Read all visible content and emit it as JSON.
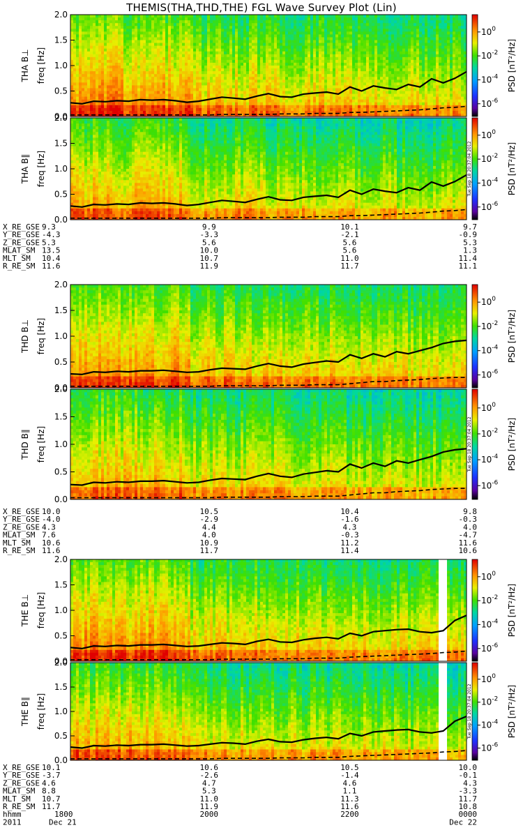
{
  "title": "THEMIS(THA,THD,THE) FGL Wave Survey Plot (Lin)",
  "colorbar": {
    "label": "PSD [nT²/Hz]",
    "ticks": [
      {
        "base": "10",
        "exp": "0"
      },
      {
        "base": "10",
        "exp": "-2"
      },
      {
        "base": "10",
        "exp": "-4"
      },
      {
        "base": "10",
        "exp": "-6"
      }
    ]
  },
  "stamp": "Tue Sep 18 20:37:04 2012",
  "chart_data": [
    {
      "probe": "THA",
      "type": "heatmap",
      "panels": [
        {
          "name": "THA B⊥",
          "ylabel": "freq [Hz]",
          "ylim": [
            0,
            2.0
          ],
          "yticks": [
            "2.0",
            "1.5",
            "1.0",
            "0.5",
            "0.0"
          ]
        },
        {
          "name": "THA B∥",
          "ylabel": "freq [Hz]",
          "ylim": [
            0,
            2.0
          ],
          "yticks": [
            "2.0",
            "1.5",
            "1.0",
            "0.5",
            "0.0"
          ]
        }
      ],
      "gaps": [],
      "fc_line": [
        0.27,
        0.25,
        0.3,
        0.29,
        0.31,
        0.3,
        0.33,
        0.32,
        0.33,
        0.31,
        0.28,
        0.3,
        0.34,
        0.38,
        0.36,
        0.34,
        0.4,
        0.45,
        0.39,
        0.38,
        0.44,
        0.46,
        0.48,
        0.44,
        0.58,
        0.5,
        0.6,
        0.56,
        0.53,
        0.63,
        0.58,
        0.74,
        0.66,
        0.75,
        0.88
      ],
      "fc_line_dashed": [
        0.03,
        0.03,
        0.03,
        0.03,
        0.03,
        0.03,
        0.03,
        0.03,
        0.03,
        0.03,
        0.03,
        0.03,
        0.03,
        0.04,
        0.04,
        0.04,
        0.04,
        0.04,
        0.05,
        0.05,
        0.05,
        0.06,
        0.06,
        0.06,
        0.08,
        0.08,
        0.09,
        0.1,
        0.11,
        0.12,
        0.13,
        0.15,
        0.17,
        0.18,
        0.2
      ],
      "orbit_labels": [
        "X_RE_GSE",
        "Y_RE_GSE",
        "Z_RE_GSE",
        "MLAT_SM",
        "MLT_SM",
        "R_RE_SM"
      ],
      "orbit_rows": [
        [
          "9.3",
          "9.9",
          "10.1",
          "9.7"
        ],
        [
          "-4.3",
          "-3.3",
          "-2.1",
          "-0.9"
        ],
        [
          "5.3",
          "5.6",
          "5.6",
          "5.3"
        ],
        [
          "13.5",
          "10.0",
          "5.6",
          "1.3"
        ],
        [
          "10.4",
          "10.7",
          "11.0",
          "11.4"
        ],
        [
          "11.6",
          "11.9",
          "11.7",
          "11.1"
        ]
      ]
    },
    {
      "probe": "THD",
      "type": "heatmap",
      "panels": [
        {
          "name": "THD B⊥",
          "ylabel": "freq [Hz]",
          "ylim": [
            0,
            2.0
          ],
          "yticks": [
            "2.0",
            "1.5",
            "1.0",
            "0.5",
            "0.0"
          ]
        },
        {
          "name": "THD B∥",
          "ylabel": "freq [Hz]",
          "ylim": [
            0,
            2.0
          ],
          "yticks": [
            "2.0",
            "1.5",
            "1.0",
            "0.5",
            "0.0"
          ]
        }
      ],
      "gaps": [],
      "fc_line": [
        0.27,
        0.26,
        0.31,
        0.3,
        0.32,
        0.31,
        0.33,
        0.33,
        0.34,
        0.32,
        0.3,
        0.31,
        0.35,
        0.38,
        0.37,
        0.36,
        0.42,
        0.47,
        0.42,
        0.4,
        0.46,
        0.49,
        0.52,
        0.5,
        0.64,
        0.57,
        0.66,
        0.6,
        0.7,
        0.66,
        0.72,
        0.78,
        0.86,
        0.9,
        0.92
      ],
      "fc_line_dashed": [
        0.03,
        0.03,
        0.03,
        0.03,
        0.03,
        0.03,
        0.03,
        0.03,
        0.03,
        0.03,
        0.03,
        0.03,
        0.03,
        0.04,
        0.04,
        0.04,
        0.04,
        0.04,
        0.05,
        0.05,
        0.05,
        0.06,
        0.06,
        0.06,
        0.08,
        0.1,
        0.12,
        0.12,
        0.14,
        0.15,
        0.16,
        0.18,
        0.19,
        0.2,
        0.2
      ],
      "orbit_labels": [
        "X_RE_GSE",
        "Y_RE_GSE",
        "Z_RE_GSE",
        "MLAT_SM",
        "MLT_SM",
        "R_RE_SM"
      ],
      "orbit_rows": [
        [
          "10.0",
          "10.5",
          "10.4",
          "9.8"
        ],
        [
          "-4.0",
          "-2.9",
          "-1.6",
          "-0.3"
        ],
        [
          "4.3",
          "4.4",
          "4.3",
          "4.0"
        ],
        [
          "7.6",
          "4.0",
          "-0.3",
          "-4.7"
        ],
        [
          "10.6",
          "10.9",
          "11.2",
          "11.6"
        ],
        [
          "11.6",
          "11.7",
          "11.4",
          "10.6"
        ]
      ]
    },
    {
      "probe": "THE",
      "type": "heatmap",
      "panels": [
        {
          "name": "THE B⊥",
          "ylabel": "freq [Hz]",
          "ylim": [
            0,
            2.0
          ],
          "yticks": [
            "2.0",
            "1.5",
            "1.0",
            "0.5",
            "0.0"
          ]
        },
        {
          "name": "THE B∥",
          "ylabel": "freq [Hz]",
          "ylim": [
            0,
            2.0
          ],
          "yticks": [
            "2.0",
            "1.5",
            "1.0",
            "0.5",
            "0.0"
          ]
        }
      ],
      "gaps": [
        [
          0.925,
          0.945
        ]
      ],
      "fc_line": [
        0.27,
        0.25,
        0.3,
        0.29,
        0.31,
        0.3,
        0.32,
        0.32,
        0.33,
        0.31,
        0.29,
        0.3,
        0.33,
        0.36,
        0.35,
        0.33,
        0.39,
        0.43,
        0.38,
        0.37,
        0.42,
        0.45,
        0.47,
        0.44,
        0.55,
        0.5,
        0.58,
        0.6,
        0.62,
        0.63,
        0.58,
        0.56,
        0.6,
        0.8,
        0.9
      ],
      "fc_line_dashed": [
        0.03,
        0.03,
        0.03,
        0.03,
        0.03,
        0.03,
        0.03,
        0.03,
        0.03,
        0.03,
        0.03,
        0.03,
        0.03,
        0.04,
        0.04,
        0.04,
        0.04,
        0.04,
        0.05,
        0.05,
        0.05,
        0.06,
        0.06,
        0.06,
        0.08,
        0.09,
        0.1,
        0.11,
        0.12,
        0.13,
        0.14,
        0.15,
        0.17,
        0.18,
        0.2
      ],
      "orbit_labels": [
        "X_RE_GSE",
        "Y_RE_GSE",
        "Z_RE_GSE",
        "MLAT_SM",
        "MLT_SM",
        "R_RE_SM"
      ],
      "orbit_rows": [
        [
          "10.1",
          "10.6",
          "10.5",
          "10.0"
        ],
        [
          "-3.7",
          "-2.6",
          "-1.4",
          "-0.1"
        ],
        [
          "4.6",
          "4.7",
          "4.6",
          "4.3"
        ],
        [
          "8.8",
          "5.3",
          "1.1",
          "-3.3"
        ],
        [
          "10.7",
          "11.0",
          "11.3",
          "11.7"
        ],
        [
          "11.7",
          "11.9",
          "11.6",
          "10.8"
        ]
      ]
    }
  ],
  "time_axis": {
    "row_label": "hhmm",
    "year": "2011",
    "ticks": [
      "1800",
      "2000",
      "2200",
      "0000"
    ],
    "dates": [
      "Dec 21",
      "",
      "",
      "Dec 22"
    ]
  }
}
